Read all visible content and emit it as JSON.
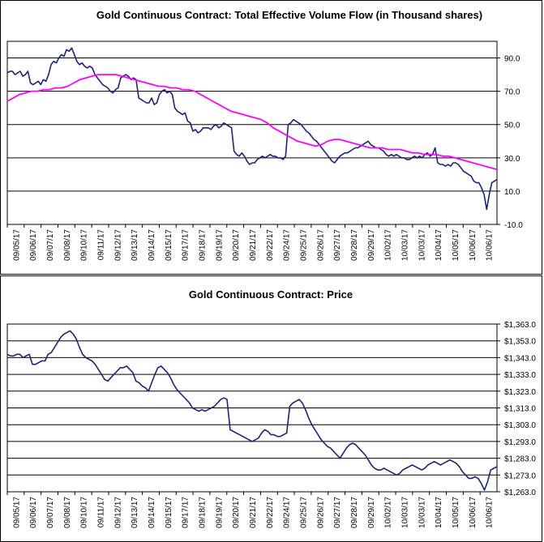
{
  "chart_data": [
    {
      "type": "line",
      "title": "Gold Continuous Contract: Total Effective Volume Flow (in Thousand shares)",
      "xlabel": "",
      "ylabel": "",
      "ylim": [
        -10,
        100
      ],
      "yticks": [
        90.0,
        70.0,
        50.0,
        30.0,
        10.0,
        -10.0
      ],
      "ytick_labels": [
        "90.0",
        "70.0",
        "50.0",
        "30.0",
        "10.0",
        "-10.0"
      ],
      "x_tick_labels": [
        "09/05/17",
        "09/06/17",
        "09/07/17",
        "09/08/17",
        "09/10/17",
        "09/11/17",
        "09/12/17",
        "09/13/17",
        "09/14/17",
        "09/15/17",
        "09/17/17",
        "09/18/17",
        "09/19/17",
        "09/20/17",
        "09/21/17",
        "09/22/17",
        "09/24/17",
        "09/25/17",
        "09/26/17",
        "09/27/17",
        "09/28/17",
        "09/29/17",
        "10/02/17",
        "10/03/17",
        "10/03/17",
        "10/04/17",
        "10/05/17",
        "10/06/17",
        "10/06/17"
      ],
      "grid": "horizontal",
      "colors": {
        "volume": "#1a237e",
        "average": "#ff00ff"
      },
      "series": [
        {
          "values": [
            81,
            82,
            82,
            80,
            81,
            82,
            79,
            80,
            82,
            75,
            74,
            75,
            76,
            74,
            77,
            76,
            80,
            86,
            88,
            87,
            90,
            92,
            91,
            95,
            94,
            96,
            92,
            88,
            86,
            87,
            85,
            84,
            85,
            84,
            80,
            78,
            76,
            74,
            73,
            72,
            70,
            69,
            71,
            72,
            78,
            79,
            80,
            79,
            77,
            78,
            77,
            66,
            65,
            64,
            63,
            63,
            66,
            62,
            63,
            68,
            70,
            71,
            69,
            70,
            68,
            60,
            58,
            57,
            56,
            57,
            52,
            51,
            46,
            47,
            45,
            46,
            48,
            48,
            48,
            47,
            49,
            50,
            48,
            49,
            51,
            50,
            49,
            48,
            34,
            32,
            31,
            33,
            31,
            28,
            26,
            27,
            27,
            29,
            30,
            31,
            30,
            31,
            32,
            31,
            31,
            30,
            30,
            29,
            31,
            50,
            51,
            53,
            52,
            51,
            50,
            48,
            46,
            45,
            43,
            41,
            40,
            38,
            36,
            34,
            32,
            30,
            28,
            27,
            29,
            31,
            32,
            33,
            33,
            34,
            35,
            36,
            36,
            37,
            38,
            39,
            40,
            38,
            37,
            36,
            36,
            35,
            34,
            32,
            31,
            32,
            31,
            32,
            31,
            30,
            30,
            29,
            29,
            30,
            31,
            30,
            31,
            30,
            32,
            33,
            31,
            32,
            36,
            27,
            26,
            26,
            25,
            26,
            25,
            27,
            27,
            26,
            24,
            22,
            21,
            20,
            19,
            16,
            15,
            15,
            12,
            8,
            -1,
            8,
            15,
            16,
            17
          ]
        },
        {
          "values": [
            64,
            66,
            68,
            69,
            70,
            70,
            71,
            71,
            72,
            72,
            73,
            75,
            77,
            78,
            79,
            80,
            80,
            80,
            80,
            79,
            78,
            77,
            76,
            75,
            74,
            73,
            73,
            72,
            72,
            71,
            71,
            70,
            68,
            66,
            64,
            62,
            60,
            58,
            57,
            56,
            55,
            54,
            53,
            51,
            48,
            46,
            44,
            42,
            40,
            39,
            38,
            37,
            38,
            40,
            41,
            41,
            40,
            39,
            38,
            37,
            36,
            36,
            36,
            35,
            35,
            35,
            34,
            33,
            33,
            32,
            32,
            32,
            31,
            31,
            30,
            29,
            28,
            27,
            26,
            25,
            24,
            23
          ]
        }
      ]
    },
    {
      "type": "line",
      "title": "Gold Continuous Contract: Price",
      "xlabel": "",
      "ylabel": "",
      "ylim": [
        1263,
        1363
      ],
      "yticks": [
        1363.0,
        1353.0,
        1343.0,
        1333.0,
        1323.0,
        1313.0,
        1303.0,
        1293.0,
        1283.0,
        1273.0,
        1263.0
      ],
      "ytick_labels": [
        "$1,363.0",
        "$1,353.0",
        "$1,343.0",
        "$1,333.0",
        "$1,323.0",
        "$1,313.0",
        "$1,303.0",
        "$1,293.0",
        "$1,283.0",
        "$1,273.0",
        "$1,263.0"
      ],
      "x_tick_labels": [
        "09/05/17",
        "09/06/17",
        "09/07/17",
        "09/08/17",
        "09/10/17",
        "09/11/17",
        "09/12/17",
        "09/13/17",
        "09/14/17",
        "09/15/17",
        "09/17/17",
        "09/18/17",
        "09/19/17",
        "09/20/17",
        "09/21/17",
        "09/22/17",
        "09/24/17",
        "09/25/17",
        "09/26/17",
        "09/27/17",
        "09/28/17",
        "09/29/17",
        "10/02/17",
        "10/03/17",
        "10/03/17",
        "10/04/17",
        "10/05/17",
        "10/06/17",
        "10/06/17"
      ],
      "grid": "horizontal",
      "colors": {
        "price": "#1a237e"
      },
      "series": [
        {
          "values": [
            1345,
            1344,
            1344,
            1345,
            1345,
            1343,
            1344,
            1345,
            1339,
            1339,
            1340,
            1341,
            1341,
            1345,
            1346,
            1349,
            1352,
            1355,
            1357,
            1358,
            1359,
            1357,
            1354,
            1349,
            1345,
            1343,
            1342,
            1341,
            1339,
            1336,
            1333,
            1330,
            1329,
            1331,
            1333,
            1335,
            1337,
            1337,
            1338,
            1336,
            1334,
            1329,
            1328,
            1326,
            1325,
            1323,
            1328,
            1333,
            1337,
            1338,
            1336,
            1334,
            1331,
            1327,
            1324,
            1322,
            1320,
            1318,
            1316,
            1313,
            1312,
            1311,
            1312,
            1311,
            1312,
            1313,
            1314,
            1316,
            1318,
            1319,
            1318,
            1300,
            1299,
            1298,
            1297,
            1296,
            1295,
            1294,
            1293,
            1294,
            1295,
            1298,
            1300,
            1299,
            1297,
            1297,
            1296,
            1296,
            1297,
            1298,
            1314,
            1316,
            1317,
            1318,
            1316,
            1312,
            1307,
            1303,
            1300,
            1297,
            1294,
            1292,
            1290,
            1289,
            1287,
            1285,
            1283,
            1286,
            1289,
            1291,
            1292,
            1291,
            1289,
            1287,
            1285,
            1282,
            1279,
            1277,
            1276,
            1276,
            1277,
            1276,
            1275,
            1274,
            1273,
            1274,
            1276,
            1277,
            1278,
            1279,
            1278,
            1277,
            1276,
            1277,
            1279,
            1280,
            1281,
            1280,
            1279,
            1280,
            1281,
            1282,
            1281,
            1280,
            1278,
            1275,
            1273,
            1271,
            1271,
            1272,
            1271,
            1268,
            1264,
            1269,
            1276,
            1277,
            1278
          ]
        }
      ]
    }
  ]
}
